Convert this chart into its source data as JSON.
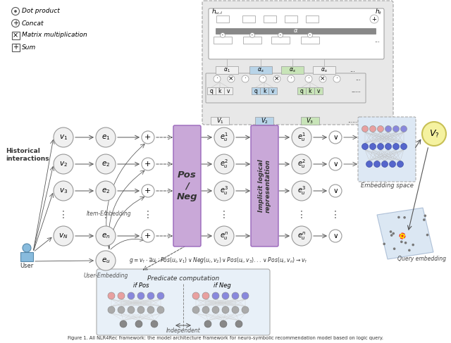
{
  "background_color": "#ffffff",
  "legend": [
    {
      "type": "dot_circle",
      "label": "Dot product"
    },
    {
      "type": "plus_circle",
      "label": "Concat"
    },
    {
      "type": "x_box",
      "label": "Matrix multiplication"
    },
    {
      "type": "plus_box",
      "label": "Sum"
    }
  ],
  "node_color": "#f0f0f0",
  "node_edge_color": "#999999",
  "arrow_color": "#555555",
  "pos_neg_color": "#c9a8d8",
  "pos_neg_edge_color": "#9966bb",
  "ilr_color": "#c9a8d8",
  "ilr_edge_color": "#9966bb",
  "attn_bg": "#e8e8e8",
  "attn_edge": "#aaaaaa",
  "embed_box_bg": "#dde8f4",
  "embed_box_edge": "#aaaaaa",
  "pred_bg": "#e8f0f8",
  "pred_edge": "#aaaaaa",
  "vq_color": "#f5f2a0",
  "vq_edge": "#c8c055",
  "plane_color": "#d0dff0",
  "nn_colors_top": [
    "#e8a0a0",
    "#e8a0a0",
    "#e8a0a0",
    "#8888dd",
    "#8888dd",
    "#8888dd"
  ],
  "nn_colors_mid": [
    "#bbbbbb",
    "#bbbbbb",
    "#bbbbbb",
    "#bbbbbb",
    "#bbbbbb",
    "#bbbbbb"
  ],
  "nn_colors_bot": [
    "#888888",
    "#888888",
    "#888888"
  ],
  "hist_label": "Historical\ninteractions",
  "item_embed_label": "Item-Embedding",
  "user_embed_label": "User-Embedding",
  "user_label": "User",
  "pos_neg_label": "Pos\n/\nNeg",
  "ilr_label": "Implicit logical\nrepresentation",
  "pred_label": "Predicate computation",
  "embed_space_label": "Embedding space",
  "query_embed_label": "Query embedding",
  "vq_label": "$V_?$",
  "formula": "$g=v_\\?\\cdot\\exists u_i: Pos(u_i,v_1)\\vee Neg(u_i,v_2)\\vee Pos(u_i,v_3)...\\vee Pos(u_i,v_n)\\rightarrow v_?$",
  "independent_label": "Independent",
  "caption": "Figure 1. NLR4Rec framework: the model architecture..."
}
